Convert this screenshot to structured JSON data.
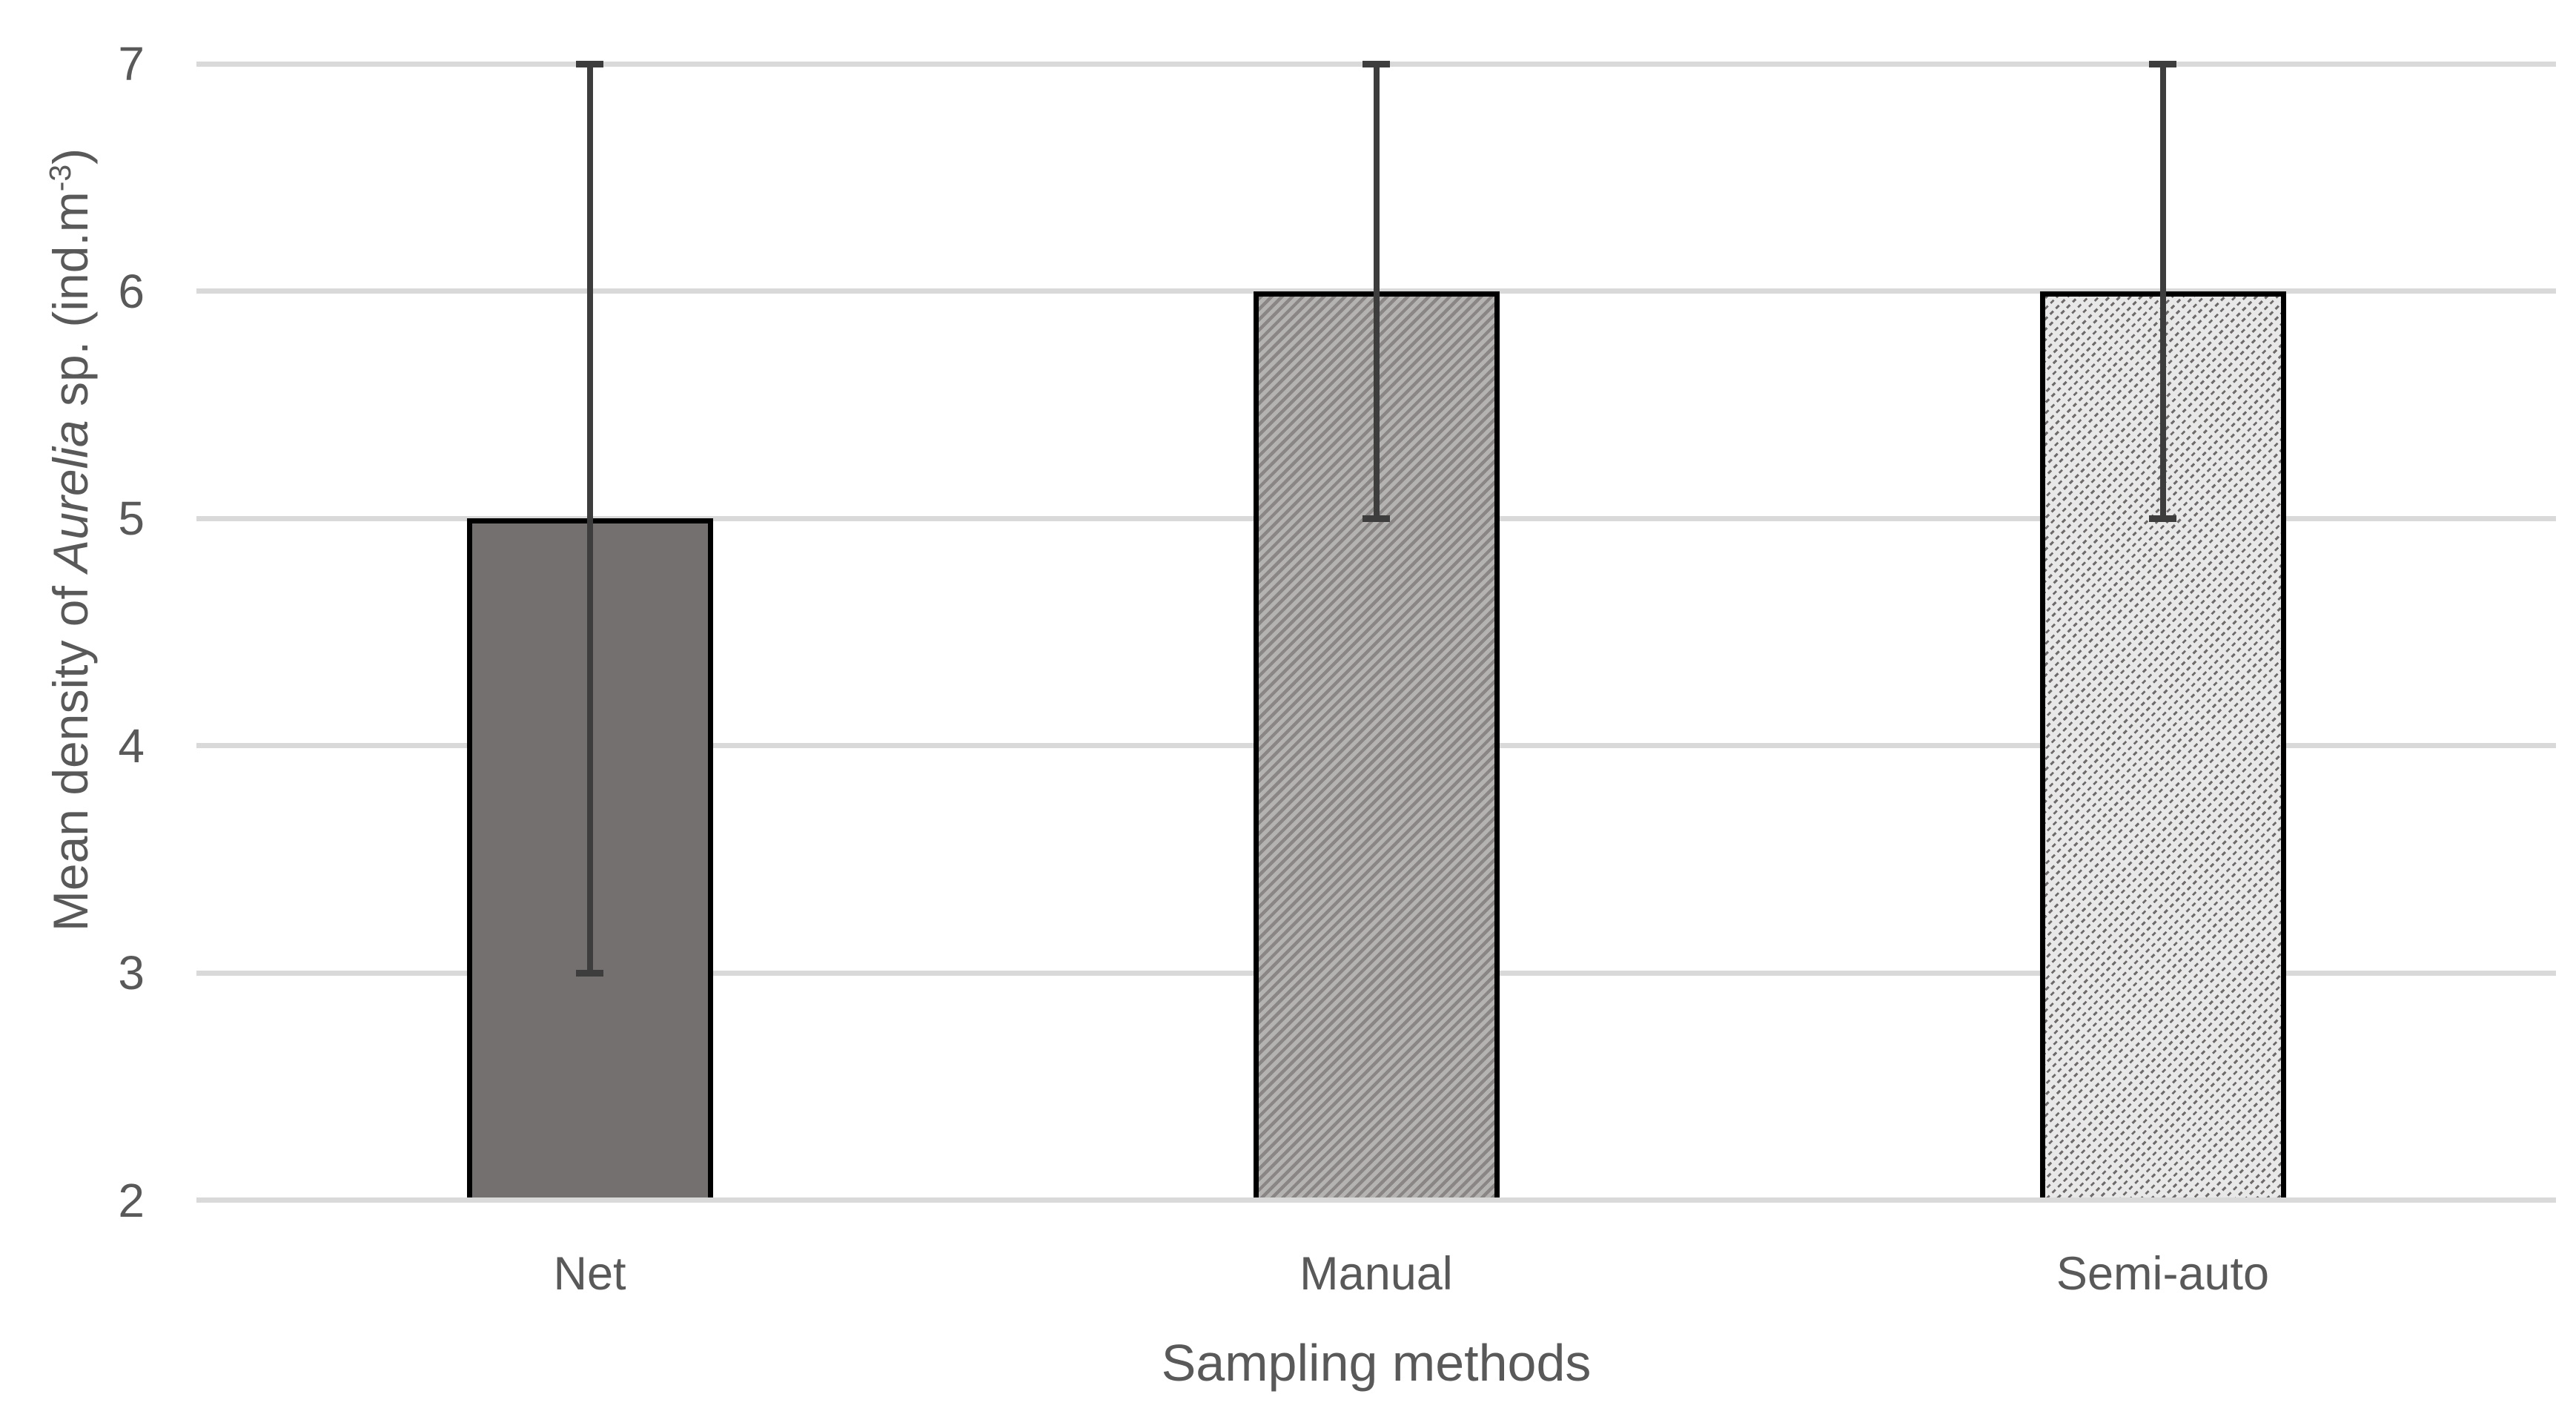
{
  "chart_data": {
    "type": "bar",
    "title": "",
    "categories": [
      "Net",
      "Manual",
      "Semi-auto"
    ],
    "values": [
      5,
      6,
      6
    ],
    "error_bars": [
      {
        "low": 3,
        "high": 7
      },
      {
        "low": 5,
        "high": 7
      },
      {
        "low": 5,
        "high": 7
      }
    ],
    "xlabel": "Sampling methods",
    "ylabel": "Mean density of Aurelia sp. (ind.m-3)",
    "ylabel_parts": [
      {
        "text": "Mean density of ",
        "style": "normal"
      },
      {
        "text": "Aurelia",
        "style": "italic"
      },
      {
        "text": " sp. (ind.m",
        "style": "normal"
      },
      {
        "text": "-3",
        "style": "super"
      },
      {
        "text": ")",
        "style": "normal"
      }
    ],
    "yticks": [
      2,
      3,
      4,
      5,
      6,
      7
    ],
    "ylim": [
      2,
      7
    ],
    "grid": "horizontal-only",
    "legend": "none",
    "bar_styles": [
      {
        "fill": "solid",
        "color": "#757070",
        "border_color": "#000000"
      },
      {
        "fill": "diagonal-stripes",
        "stripe_color": "#8a8686",
        "bg_color": "#b5b2b2",
        "border_color": "#000000"
      },
      {
        "fill": "diagonal-dashes",
        "stripe_color": "#6f6b6b",
        "bg_color": "#e9e8e8",
        "border_color": "#000000"
      }
    ],
    "colors": {
      "gridline": "#d9d9d9",
      "axis_text": "#595959",
      "error_bar": "#3d3d3d",
      "background": "#ffffff"
    }
  }
}
